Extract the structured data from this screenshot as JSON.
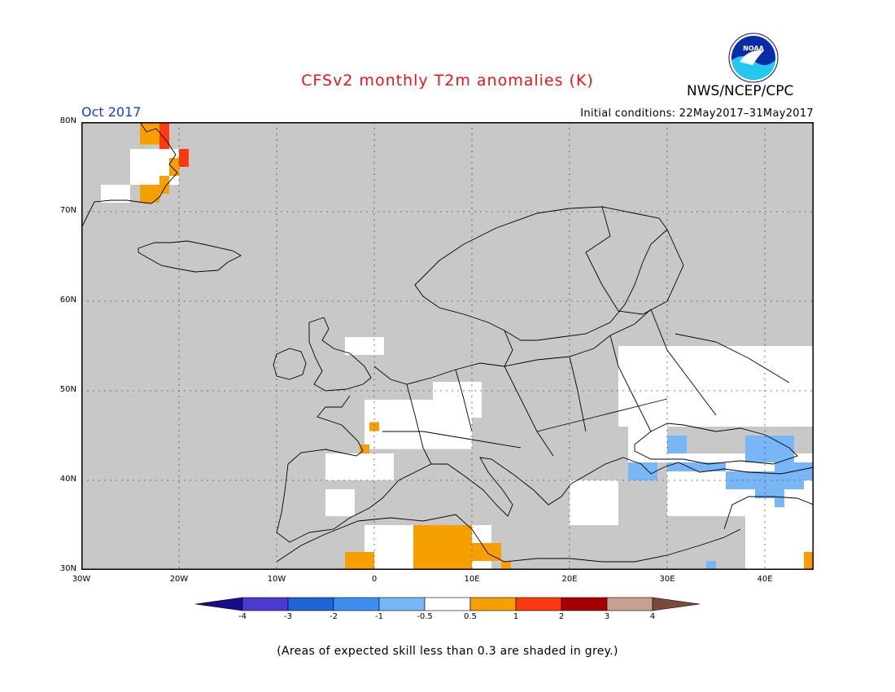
{
  "title": "CFSv2 monthly T2m anomalies (K)",
  "center": "NWS/NCEP/CPC",
  "logo_text": "NOAA",
  "month": "Oct 2017",
  "initial_conditions": "Initial conditions: 22May2017–31May2017",
  "lat_labels": [
    "80N",
    "70N",
    "60N",
    "50N",
    "40N",
    "30N"
  ],
  "lon_labels": [
    "30W",
    "20W",
    "10W",
    "0",
    "10E",
    "20E",
    "30E",
    "40E"
  ],
  "colorbar_ticks": [
    "-4",
    "-3",
    "-2",
    "-1",
    "-0.5",
    "0.5",
    "1",
    "2",
    "3",
    "4"
  ],
  "colorbar_colors": [
    "#1a0a8c",
    "#4b3ad0",
    "#1f64d6",
    "#3e8ef0",
    "#78b6f6",
    "#ffffff",
    "#f5a000",
    "#ff3a10",
    "#a50000",
    "#c8a090",
    "#7a4a3a"
  ],
  "footnote": "(Areas of expected skill less than 0.3 are shaded in grey.)",
  "colors": {
    "no_skill_grey": "#c8c8c8",
    "neutral_white": "#ffffff",
    "warm_orange": "#f5a000",
    "warm_red": "#ff3a10",
    "cool_blue": "#78b6f6",
    "title_red": "#e8151b",
    "month_blue": "#1f3bd6"
  },
  "map_extent": {
    "lon_min": -30,
    "lon_max": 45,
    "lat_min": 30,
    "lat_max": 80
  }
}
